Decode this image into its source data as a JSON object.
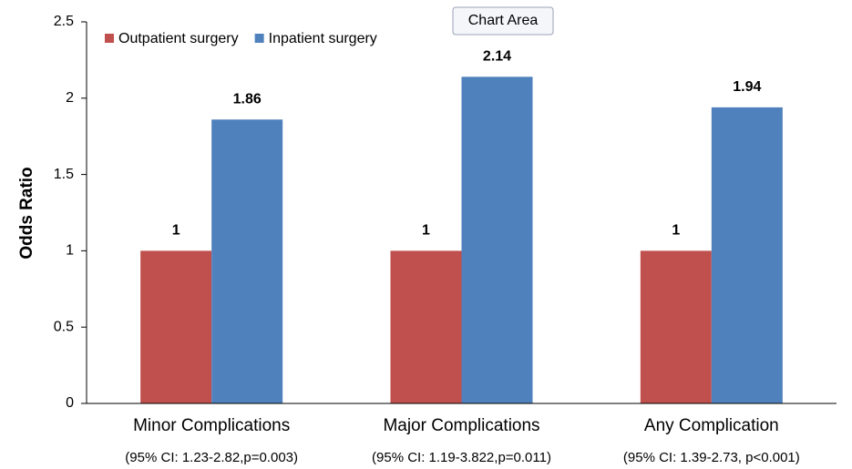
{
  "chart_data": {
    "type": "bar",
    "y_label": "Odds Ratio",
    "categories": [
      "Minor Complications",
      "Major Complications",
      "Any Complication"
    ],
    "annotations": [
      "(95% CI: 1.23-2.82,p=0.003)",
      "(95% CI: 1.19-3.822,p=0.011)",
      "(95% CI: 1.39-2.73, p<0.001)"
    ],
    "series": [
      {
        "name": "Outpatient surgery",
        "color": "#c0504d",
        "values": [
          1,
          1,
          1
        ]
      },
      {
        "name": "Inpatient surgery",
        "color": "#4f81bd",
        "values": [
          1.86,
          2.14,
          1.94
        ]
      }
    ],
    "ylim": [
      0,
      2.5
    ],
    "yticks": [
      0,
      0.5,
      1,
      1.5,
      2,
      2.5
    ],
    "grid": false,
    "legend": "top-left",
    "tooltip": "Chart Area"
  }
}
